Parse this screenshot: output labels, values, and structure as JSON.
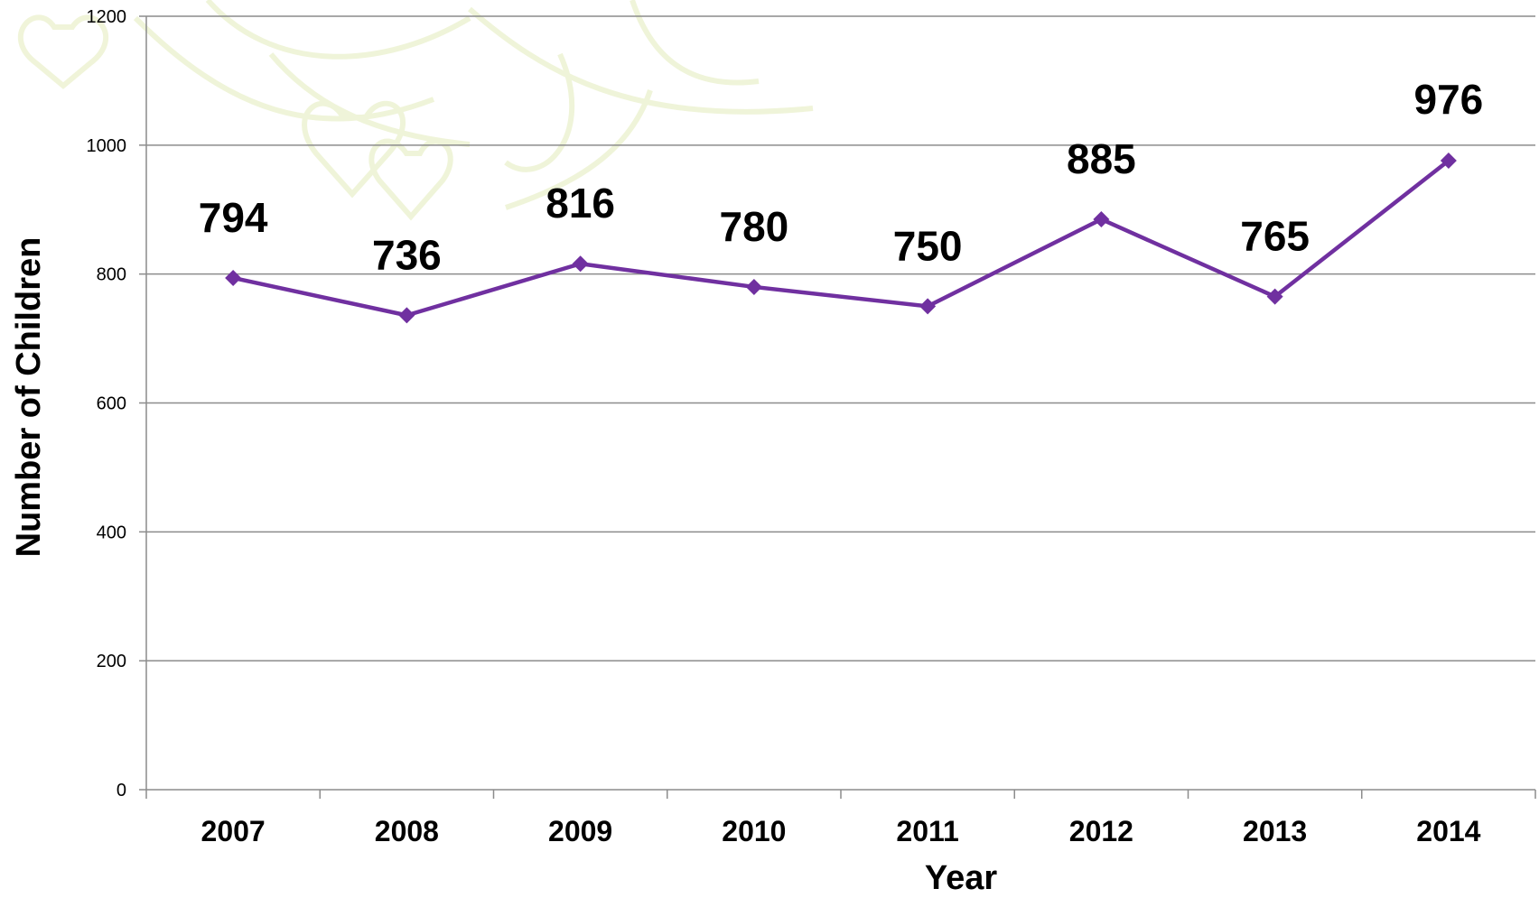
{
  "chart_data": {
    "type": "line",
    "title": "",
    "xlabel": "Year",
    "ylabel": "Number of Children",
    "categories": [
      "2007",
      "2008",
      "2009",
      "2010",
      "2011",
      "2012",
      "2013",
      "2014"
    ],
    "series": [
      {
        "values": [
          794,
          736,
          816,
          780,
          750,
          885,
          765,
          976
        ],
        "color": "#7030A0",
        "marker": "diamond"
      }
    ],
    "ylim": [
      0,
      1200
    ],
    "yticks": [
      "0",
      "200",
      "400",
      "600",
      "800",
      "1000",
      "1200"
    ],
    "data_labels": [
      "794",
      "736",
      "816",
      "780",
      "750",
      "885",
      "765",
      "976"
    ],
    "grid": true,
    "legend": "none",
    "colors": {
      "gridline": "#8C8C8C",
      "axis": "#8C8C8C",
      "background_decoration": "#EEF3D5"
    }
  }
}
